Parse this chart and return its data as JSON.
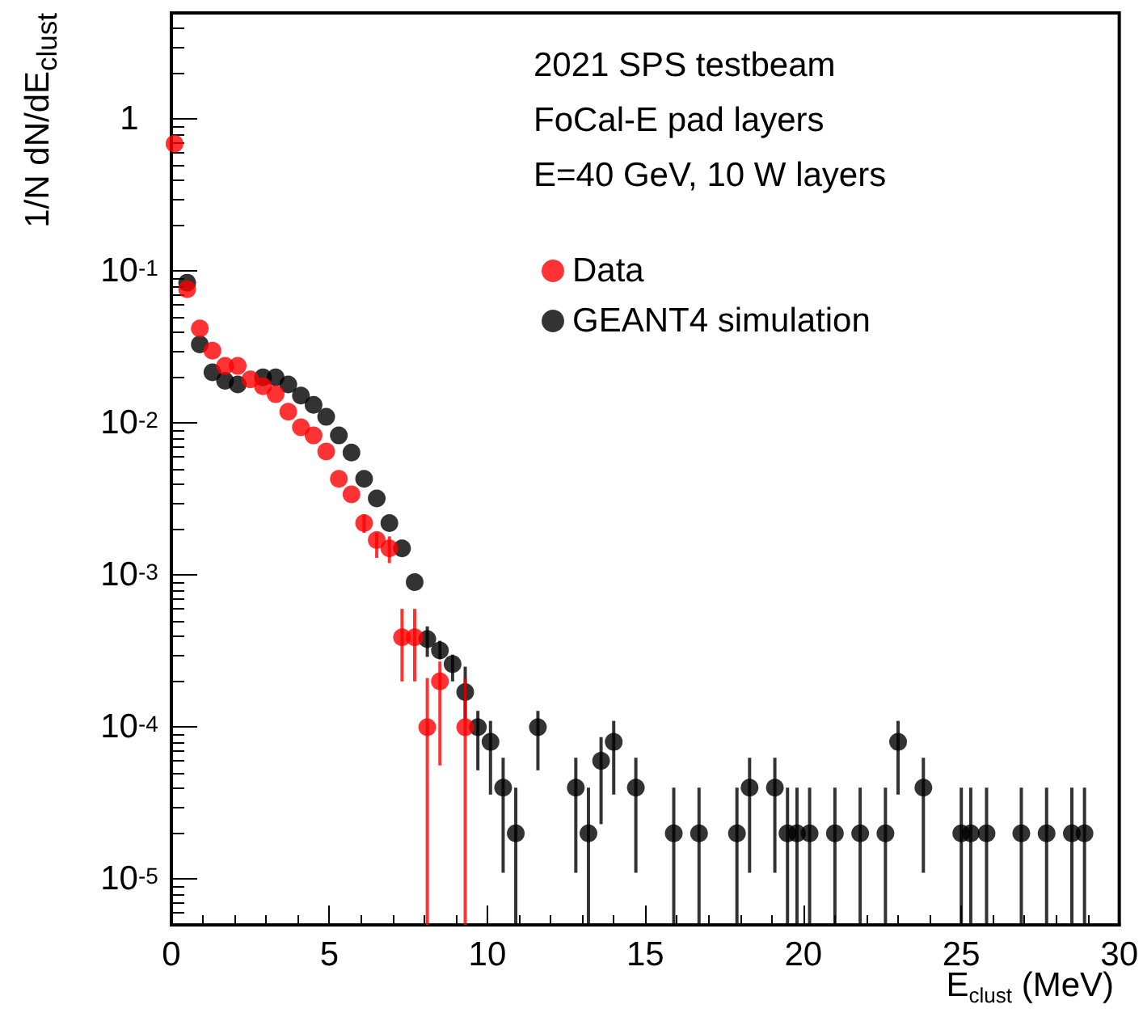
{
  "chart_data": {
    "type": "scatter",
    "xlabel": "E$_{clust}$ (MeV)",
    "ylabel": "1/N dN/dE$_{clust}$",
    "annotations": [
      "2021 SPS testbeam",
      "FoCal-E pad layers",
      "E=40 GeV, 10 W layers"
    ],
    "xlim": [
      0,
      30
    ],
    "xticks": [
      0,
      5,
      10,
      15,
      20,
      25,
      30
    ],
    "ylim": [
      5e-06,
      5
    ],
    "log": "y",
    "yticks": [
      {
        "value": 1e-05,
        "label": "10$^{-5}$"
      },
      {
        "value": 0.0001,
        "label": "10$^{-4}$"
      },
      {
        "value": 0.001,
        "label": "10$^{-3}$"
      },
      {
        "value": 0.01,
        "label": "10$^{-2}$"
      },
      {
        "value": 0.1,
        "label": "10$^{-1}$"
      },
      {
        "value": 1,
        "label": "1"
      }
    ],
    "grid": false,
    "legend": "top right",
    "marker": "circle",
    "series": [
      {
        "name": "Data",
        "color": "#ff0000",
        "x": [
          0.1,
          0.5,
          0.9,
          1.3,
          1.7,
          2.1,
          2.5,
          2.9,
          3.3,
          3.7,
          4.1,
          4.5,
          4.9,
          5.3,
          5.7,
          6.1,
          6.5,
          6.9,
          7.3,
          7.7,
          8.1,
          8.5,
          9.3
        ],
        "values": [
          0.69,
          0.076,
          0.042,
          0.03,
          0.0238,
          0.0238,
          0.0194,
          0.0175,
          0.0155,
          0.0119,
          0.0094,
          0.0083,
          0.0065,
          0.0043,
          0.0034,
          0.0022,
          0.0017,
          0.0015,
          0.00039,
          0.00039,
          0.0001,
          0.0002,
          0.0001
        ],
        "errors": [
          null,
          null,
          null,
          null,
          null,
          null,
          null,
          null,
          null,
          null,
          null,
          null,
          null,
          null,
          null,
          [
            0.0019,
            0.0025
          ],
          [
            0.0013,
            0.0019
          ],
          [
            0.0012,
            0.0018
          ],
          [
            0.0002,
            0.0006
          ],
          [
            0.0002,
            0.0006
          ],
          [
            5e-06,
            0.00021
          ],
          [
            5.6e-05,
            0.00027
          ],
          [
            5e-06,
            0.00021
          ]
        ]
      },
      {
        "name": "GEANT4 simulation",
        "color": "#000000",
        "x": [
          0.5,
          0.9,
          1.3,
          1.7,
          2.1,
          2.5,
          2.9,
          3.3,
          3.7,
          4.1,
          4.5,
          4.9,
          5.3,
          5.7,
          6.1,
          6.5,
          6.9,
          7.3,
          7.7,
          8.1,
          8.5,
          8.9,
          9.3,
          9.7,
          10.1,
          10.5,
          10.9,
          11.6,
          12.8,
          13.2,
          13.6,
          14.0,
          14.7,
          15.9,
          16.7,
          17.9,
          18.3,
          19.1,
          19.5,
          19.8,
          20.2,
          21.0,
          21.8,
          22.6,
          23.0,
          23.8,
          25.0,
          25.3,
          25.8,
          26.9,
          27.7,
          28.5,
          28.9
        ],
        "values": [
          0.084,
          0.033,
          0.0216,
          0.019,
          0.018,
          null,
          0.02,
          0.02,
          0.018,
          0.0152,
          0.0132,
          0.011,
          0.0083,
          0.0064,
          0.0043,
          0.0032,
          0.0022,
          0.0015,
          0.0009,
          0.00038,
          0.00032,
          0.00026,
          0.00017,
          0.0001,
          8e-05,
          4e-05,
          2e-05,
          0.0001,
          4e-05,
          2e-05,
          6e-05,
          8e-05,
          4e-05,
          2e-05,
          2e-05,
          2e-05,
          4e-05,
          4e-05,
          2e-05,
          2e-05,
          2e-05,
          2e-05,
          2e-05,
          2e-05,
          8e-05,
          4e-05,
          2e-05,
          2e-05,
          2e-05,
          2e-05,
          2e-05,
          2e-05,
          2e-05
        ],
        "errors": [
          null,
          null,
          null,
          null,
          null,
          null,
          null,
          null,
          null,
          null,
          null,
          null,
          null,
          null,
          null,
          null,
          null,
          null,
          null,
          [
            0.00029,
            0.00046
          ],
          [
            0.00028,
            0.00037
          ],
          [
            0.0002,
            0.0003
          ],
          [
            0.00011,
            0.00025
          ],
          [
            5.2e-05,
            0.000128
          ],
          [
            3.6e-05,
            0.00011
          ],
          [
            1.1e-05,
            6.3e-05
          ],
          [
            5e-06,
            4e-05
          ],
          [
            5.2e-05,
            0.000128
          ],
          [
            1.1e-05,
            6.3e-05
          ],
          [
            5e-06,
            4e-05
          ],
          [
            2.3e-05,
            8.6e-05
          ],
          [
            3.6e-05,
            0.00011
          ],
          [
            1.1e-05,
            6.3e-05
          ],
          [
            5e-06,
            4e-05
          ],
          [
            5e-06,
            4e-05
          ],
          [
            5e-06,
            4e-05
          ],
          [
            1.1e-05,
            6.3e-05
          ],
          [
            1.1e-05,
            6.3e-05
          ],
          [
            5e-06,
            4e-05
          ],
          [
            5e-06,
            4e-05
          ],
          [
            5e-06,
            4e-05
          ],
          [
            5e-06,
            4e-05
          ],
          [
            5e-06,
            4e-05
          ],
          [
            5e-06,
            4e-05
          ],
          [
            3.6e-05,
            0.00011
          ],
          [
            1.1e-05,
            6.3e-05
          ],
          [
            5e-06,
            4e-05
          ],
          [
            5e-06,
            4e-05
          ],
          [
            5e-06,
            4e-05
          ],
          [
            5e-06,
            4e-05
          ],
          [
            5e-06,
            4e-05
          ],
          [
            5e-06,
            4e-05
          ],
          [
            5e-06,
            4e-05
          ]
        ]
      }
    ]
  }
}
